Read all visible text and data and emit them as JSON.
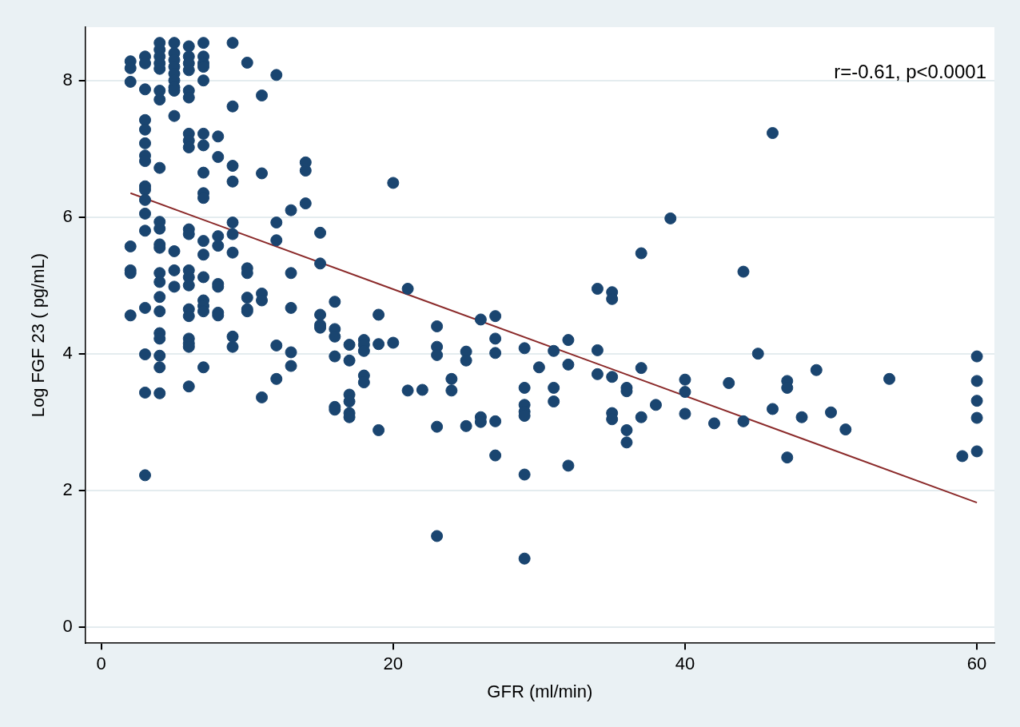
{
  "chart_data": {
    "type": "scatter",
    "xlabel": "GFR (ml/min)",
    "ylabel": "Log FGF 23 ( pg/mL)",
    "annotations": [
      "r=-0.61, p<0.0001"
    ],
    "xlim": [
      -1.1,
      61.2
    ],
    "ylim": [
      -0.24,
      8.78
    ],
    "xticks": [
      0,
      20,
      40,
      60
    ],
    "yticks": [
      0,
      2,
      4,
      6,
      8
    ],
    "grid": "y",
    "legend": false,
    "marker": "circle",
    "series": [
      {
        "type": "scatter",
        "color": "#1a4570",
        "x": [
          2,
          2,
          2,
          2,
          2,
          2,
          2,
          3,
          3,
          3,
          3,
          3,
          3,
          3,
          3,
          3,
          3,
          3,
          3,
          3,
          3,
          3,
          3,
          3,
          4,
          4,
          4,
          4,
          4,
          4,
          4,
          4,
          4,
          4,
          4,
          4,
          4,
          4,
          4,
          4,
          4,
          4,
          4,
          4,
          4,
          5,
          5,
          5,
          5,
          5,
          5,
          5,
          5,
          5,
          5,
          5,
          5,
          6,
          6,
          6,
          6,
          6,
          6,
          6,
          6,
          6,
          6,
          6,
          6,
          6,
          6,
          6,
          6,
          6,
          6,
          6,
          6,
          7,
          7,
          7,
          7,
          7,
          7,
          7,
          7,
          7,
          7,
          7,
          7,
          7,
          7,
          7,
          7,
          7,
          8,
          8,
          8,
          8,
          8,
          8,
          8,
          8,
          9,
          9,
          9,
          9,
          9,
          9,
          9,
          9,
          9,
          10,
          10,
          10,
          10,
          10,
          10,
          11,
          11,
          11,
          11,
          11,
          12,
          12,
          12,
          12,
          12,
          13,
          13,
          13,
          13,
          13,
          14,
          14,
          14,
          15,
          15,
          15,
          15,
          15,
          16,
          16,
          16,
          16,
          16,
          16,
          17,
          17,
          17,
          17,
          17,
          17,
          18,
          18,
          18,
          18,
          18,
          19,
          19,
          19,
          20,
          20,
          21,
          21,
          22,
          23,
          23,
          23,
          23,
          23,
          24,
          24,
          25,
          25,
          25,
          26,
          26,
          26,
          27,
          27,
          27,
          27,
          27,
          29,
          29,
          29,
          29,
          29,
          29,
          29,
          30,
          31,
          31,
          31,
          32,
          32,
          32,
          34,
          34,
          34,
          35,
          35,
          35,
          35,
          35,
          36,
          36,
          36,
          36,
          37,
          37,
          37,
          38,
          39,
          40,
          40,
          40,
          42,
          43,
          44,
          44,
          45,
          46,
          46,
          47,
          47,
          47,
          48,
          49,
          50,
          51,
          54,
          59,
          60,
          60,
          60,
          60,
          60
        ],
        "values": [
          8.28,
          8.18,
          7.98,
          5.57,
          5.22,
          5.18,
          4.56,
          8.35,
          8.25,
          7.87,
          7.42,
          7.28,
          7.08,
          6.9,
          6.82,
          6.45,
          6.4,
          6.25,
          6.05,
          5.8,
          4.67,
          3.99,
          3.43,
          2.22,
          8.55,
          8.45,
          8.35,
          8.25,
          8.17,
          7.85,
          7.72,
          6.72,
          5.93,
          5.83,
          5.6,
          5.55,
          5.18,
          5.05,
          4.83,
          4.62,
          4.3,
          4.22,
          3.97,
          3.8,
          3.42,
          8.55,
          8.4,
          8.3,
          8.2,
          8.1,
          8.0,
          7.9,
          7.85,
          7.48,
          5.5,
          5.22,
          4.98,
          8.5,
          8.35,
          8.25,
          8.15,
          7.85,
          7.75,
          7.22,
          7.12,
          7.02,
          5.82,
          5.75,
          5.22,
          5.12,
          5.0,
          4.65,
          4.55,
          4.22,
          4.15,
          4.1,
          3.52,
          8.55,
          8.35,
          8.25,
          8.2,
          8.0,
          7.22,
          7.05,
          6.65,
          6.35,
          6.28,
          5.65,
          5.45,
          5.12,
          4.78,
          4.7,
          4.62,
          3.8,
          7.18,
          6.88,
          5.72,
          5.58,
          5.02,
          4.98,
          4.6,
          4.56,
          8.55,
          7.62,
          6.75,
          6.52,
          5.92,
          5.75,
          5.48,
          4.25,
          4.1,
          8.26,
          5.25,
          5.18,
          4.82,
          4.65,
          4.62,
          7.78,
          6.64,
          4.88,
          4.78,
          3.36,
          8.08,
          5.92,
          5.66,
          4.12,
          3.63,
          6.1,
          5.18,
          4.67,
          4.02,
          3.82,
          6.8,
          6.68,
          6.2,
          5.77,
          5.32,
          4.57,
          4.42,
          4.38,
          4.76,
          4.36,
          4.25,
          3.96,
          3.22,
          3.18,
          4.13,
          3.9,
          3.4,
          3.3,
          3.13,
          3.07,
          4.2,
          4.13,
          4.04,
          3.68,
          3.58,
          4.57,
          4.14,
          2.88,
          6.5,
          4.16,
          4.95,
          3.46,
          3.47,
          4.4,
          4.1,
          3.98,
          2.93,
          1.33,
          3.63,
          3.46,
          4.03,
          3.9,
          2.94,
          4.5,
          3.07,
          3.0,
          4.55,
          4.22,
          4.01,
          3.01,
          2.51,
          4.08,
          3.5,
          3.25,
          3.15,
          3.09,
          2.23,
          1.0,
          3.8,
          4.04,
          3.5,
          3.3,
          4.2,
          3.84,
          2.36,
          4.95,
          4.05,
          3.7,
          4.9,
          4.8,
          3.66,
          3.13,
          3.04,
          3.5,
          3.45,
          2.88,
          2.7,
          5.47,
          3.79,
          3.07,
          3.25,
          5.98,
          3.62,
          3.44,
          3.12,
          2.98,
          3.57,
          5.2,
          3.01,
          4.0,
          7.23,
          3.19,
          3.6,
          3.5,
          2.48,
          3.07,
          3.76,
          3.14,
          2.89,
          3.63,
          2.5,
          3.96,
          3.6,
          3.31,
          3.06,
          2.57
        ]
      },
      {
        "type": "line",
        "color": "#8b2a2a",
        "marker": "none",
        "x": [
          2,
          60
        ],
        "values": [
          6.35,
          1.82
        ]
      }
    ]
  }
}
